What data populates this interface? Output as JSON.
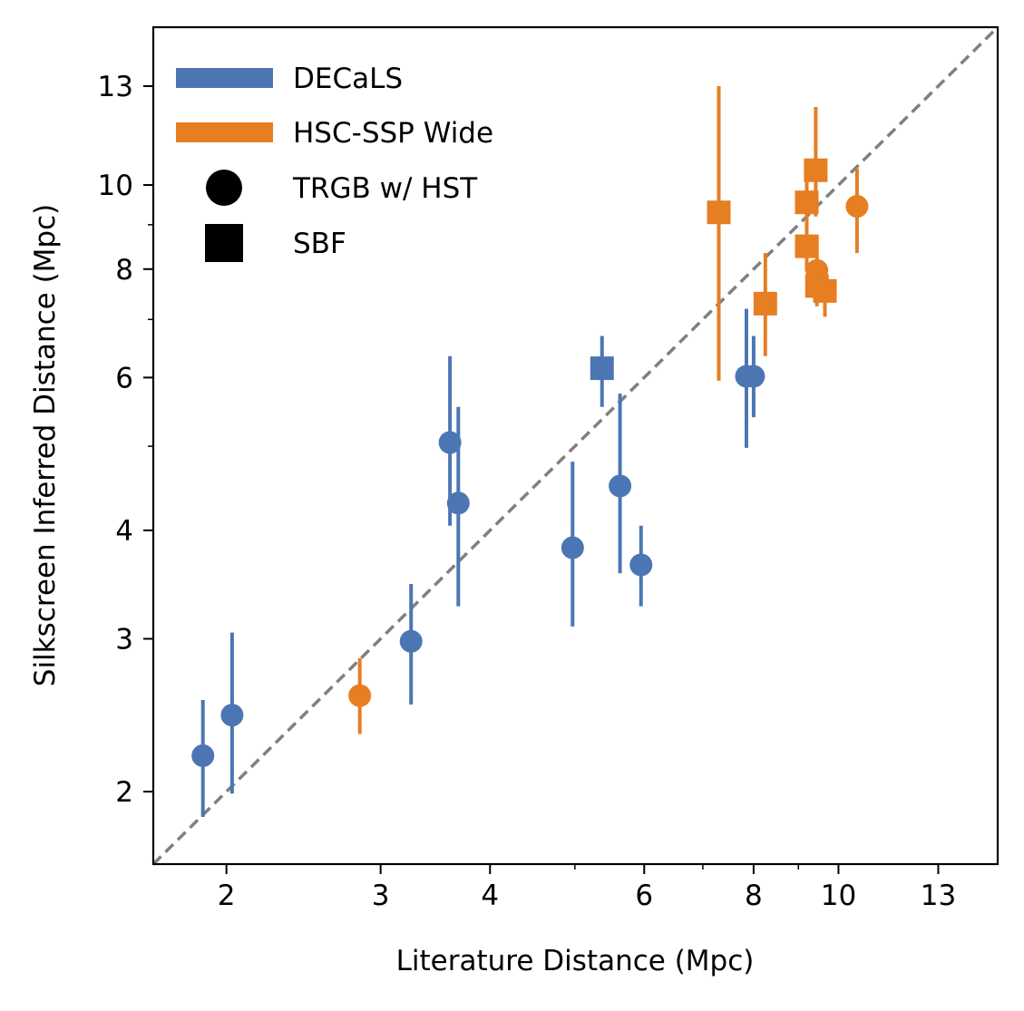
{
  "chart_data": {
    "type": "scatter",
    "xlabel": "Literature Distance (Mpc)",
    "ylabel": "Silkscreen Inferred Distance (Mpc)",
    "xscale": "log",
    "yscale": "log",
    "xlim": [
      1.65,
      15.2
    ],
    "ylim": [
      1.65,
      15.2
    ],
    "xticks": [
      2,
      3,
      4,
      6,
      8,
      10,
      13
    ],
    "yticks": [
      2,
      3,
      4,
      6,
      8,
      10,
      13
    ],
    "xtick_labels": [
      "2",
      "3",
      "4",
      "6",
      "8",
      "10",
      "13"
    ],
    "ytick_labels": [
      "2",
      "3",
      "4",
      "6",
      "8",
      "10",
      "13"
    ],
    "minor_ticks": [
      5,
      7,
      9
    ],
    "reference_line": "y = x",
    "legend_position": "top-left",
    "legend": [
      {
        "label": "DECaLS",
        "kind": "color",
        "color": "#4c76b3"
      },
      {
        "label": "HSC-SSP Wide",
        "kind": "color",
        "color": "#e67e22"
      },
      {
        "label": "TRGB w/ HST",
        "kind": "marker",
        "marker": "circle"
      },
      {
        "label": "SBF",
        "kind": "marker",
        "marker": "square"
      }
    ],
    "series": [
      {
        "name": "DECaLS",
        "color": "#4c76b3",
        "points": [
          {
            "x": 1.88,
            "y": 2.2,
            "ylo": 1.87,
            "yhi": 2.55,
            "marker": "circle"
          },
          {
            "x": 2.03,
            "y": 2.45,
            "ylo": 1.99,
            "yhi": 3.05,
            "marker": "circle"
          },
          {
            "x": 3.25,
            "y": 2.98,
            "ylo": 2.52,
            "yhi": 3.47,
            "marker": "circle"
          },
          {
            "x": 3.6,
            "y": 5.05,
            "ylo": 4.05,
            "yhi": 6.35,
            "marker": "circle"
          },
          {
            "x": 3.68,
            "y": 4.3,
            "ylo": 3.27,
            "yhi": 5.55,
            "marker": "circle"
          },
          {
            "x": 4.97,
            "y": 3.82,
            "ylo": 3.1,
            "yhi": 4.8,
            "marker": "circle"
          },
          {
            "x": 5.63,
            "y": 4.5,
            "ylo": 3.57,
            "yhi": 5.75,
            "marker": "circle"
          },
          {
            "x": 5.95,
            "y": 3.65,
            "ylo": 3.27,
            "yhi": 4.05,
            "marker": "circle"
          },
          {
            "x": 7.85,
            "y": 6.02,
            "ylo": 4.98,
            "yhi": 7.2,
            "marker": "circle"
          },
          {
            "x": 8.0,
            "y": 6.02,
            "ylo": 5.4,
            "yhi": 6.7,
            "marker": "circle"
          },
          {
            "x": 5.37,
            "y": 6.15,
            "ylo": 5.55,
            "yhi": 6.7,
            "marker": "square"
          }
        ]
      },
      {
        "name": "HSC-SSP Wide",
        "color": "#e67e22",
        "points": [
          {
            "x": 2.84,
            "y": 2.58,
            "ylo": 2.33,
            "yhi": 2.85,
            "marker": "circle"
          },
          {
            "x": 9.45,
            "y": 7.97,
            "ylo": 7.3,
            "yhi": 8.75,
            "marker": "circle"
          },
          {
            "x": 10.5,
            "y": 9.45,
            "ylo": 8.35,
            "yhi": 10.45,
            "marker": "circle"
          },
          {
            "x": 7.3,
            "y": 9.3,
            "ylo": 5.95,
            "yhi": 13.0,
            "marker": "square"
          },
          {
            "x": 8.25,
            "y": 7.3,
            "ylo": 6.35,
            "yhi": 8.35,
            "marker": "square"
          },
          {
            "x": 9.2,
            "y": 9.55,
            "ylo": 8.75,
            "yhi": 10.35,
            "marker": "square"
          },
          {
            "x": 9.2,
            "y": 8.5,
            "ylo": 7.95,
            "yhi": 9.1,
            "marker": "square"
          },
          {
            "x": 9.42,
            "y": 10.4,
            "ylo": 9.2,
            "yhi": 12.3,
            "marker": "square"
          },
          {
            "x": 9.45,
            "y": 7.65,
            "ylo": 7.25,
            "yhi": 8.05,
            "marker": "square"
          },
          {
            "x": 9.65,
            "y": 7.55,
            "ylo": 7.05,
            "yhi": 7.9,
            "marker": "square"
          }
        ]
      }
    ]
  }
}
